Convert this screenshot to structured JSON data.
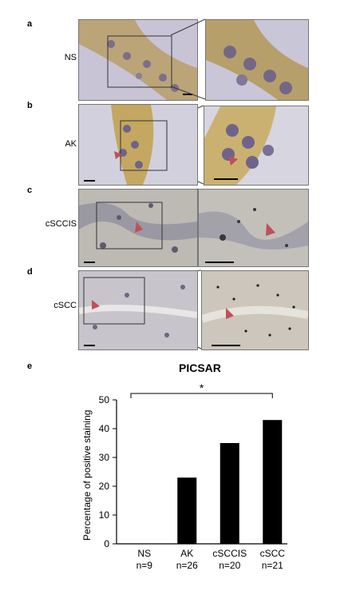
{
  "panels": {
    "a": {
      "letter": "a",
      "label": "NS"
    },
    "b": {
      "letter": "b",
      "label": "AK"
    },
    "c": {
      "letter": "c",
      "label": "cSCCIS"
    },
    "d": {
      "letter": "d",
      "label": "cSCC"
    },
    "e": {
      "letter": "e"
    }
  },
  "colors": {
    "brown_stain": "#c9a24a",
    "hematoxylin": "#a9a5c2",
    "grey_tissue": "#bdbab4",
    "arrow": "#c0505a",
    "bar": "#000000"
  },
  "chart_data": {
    "type": "bar",
    "title": "PICSAR",
    "ylabel": "Percentage of positive staining",
    "xlabel": "",
    "categories": [
      "NS",
      "AK",
      "cSCCIS",
      "cSCC"
    ],
    "category_n": [
      "n=9",
      "n=26",
      "n=20",
      "n=21"
    ],
    "values": [
      0,
      23,
      35,
      43
    ],
    "ylim": [
      0,
      50
    ],
    "yticks": [
      0,
      10,
      20,
      30,
      40,
      50
    ],
    "significance": "*",
    "grid": false
  }
}
